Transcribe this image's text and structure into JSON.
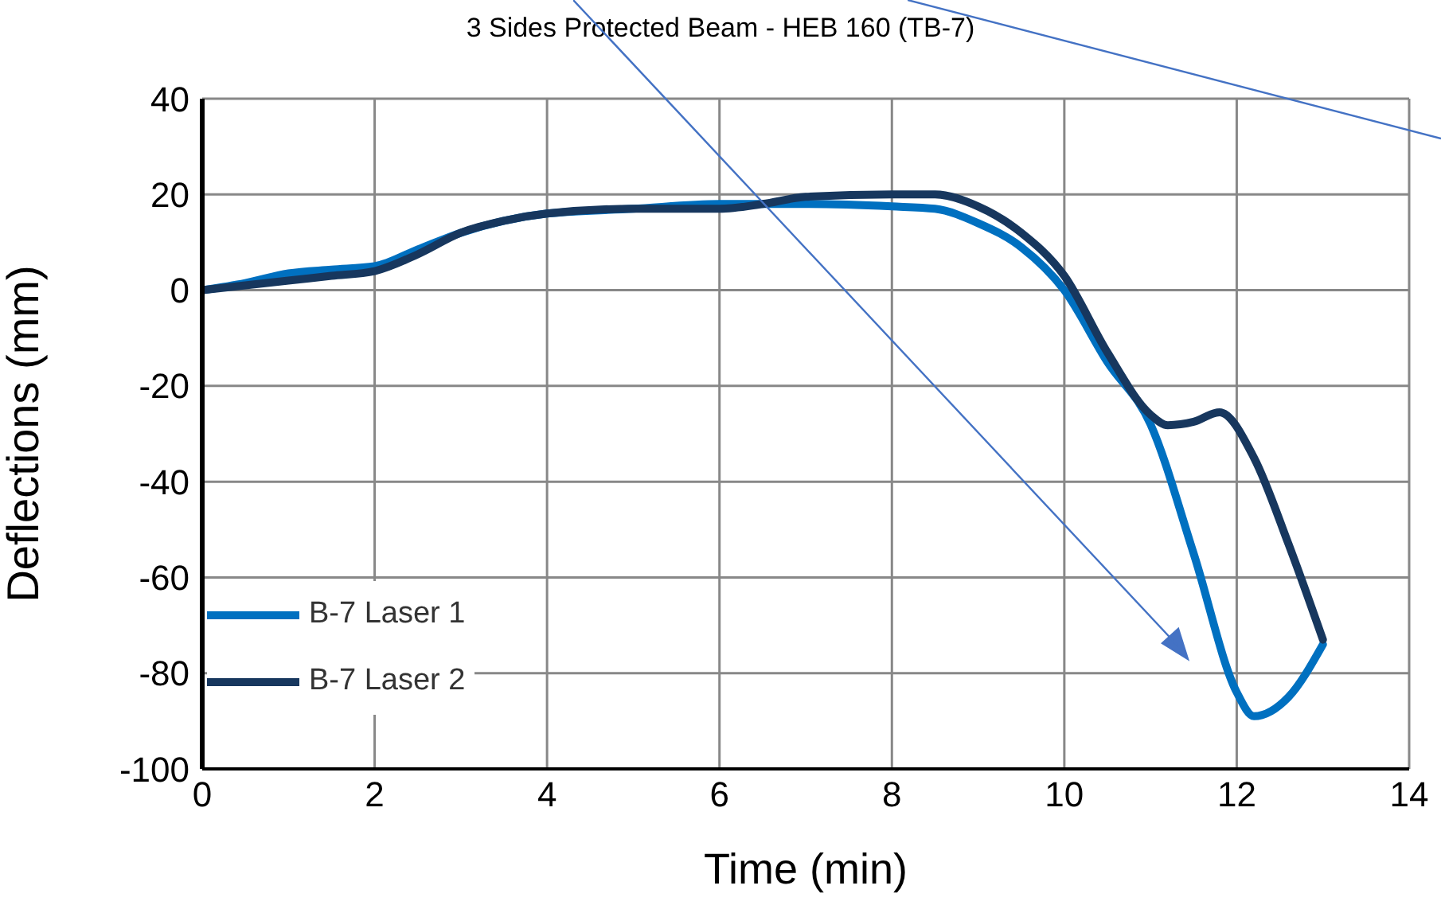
{
  "chart_data": {
    "type": "line",
    "title": "3 Sides Protected Beam - HEB 160 (TB-7)",
    "xlabel": "Time (min)",
    "ylabel": "Deflections (mm)",
    "xlim": [
      0,
      14
    ],
    "xticks": [
      0,
      2,
      4,
      6,
      8,
      10,
      12,
      14
    ],
    "ylim": [
      -100,
      40
    ],
    "yticks": [
      -100,
      -80,
      -60,
      -40,
      -20,
      0,
      20,
      40
    ],
    "grid": true,
    "legend": "bottom left",
    "marker": "none",
    "line_style": "solid",
    "series": [
      {
        "name": "B-7 Laser 1",
        "color": "#0070c0",
        "x": [
          0,
          0.5,
          1,
          1.5,
          2,
          2.5,
          3,
          3.5,
          4,
          5,
          6,
          7,
          8,
          8.5,
          9,
          9.5,
          10,
          10.5,
          11,
          11.5,
          12,
          12.2,
          12.6,
          13
        ],
        "values": [
          0,
          1.5,
          3.5,
          4.3,
          5,
          8.5,
          12,
          14.5,
          16,
          17,
          18,
          18,
          17.5,
          17,
          14,
          9,
          0,
          -15,
          -28,
          -55,
          -84,
          -89,
          -85,
          -74
        ]
      },
      {
        "name": "B-7 Laser 2",
        "color": "#17375e",
        "x": [
          0,
          0.5,
          1,
          1.5,
          2,
          2.5,
          3,
          3.5,
          4,
          5,
          6,
          6.5,
          7,
          8,
          8.5,
          9,
          9.5,
          10,
          10.5,
          11,
          11.2,
          11.5,
          11.8,
          12.2,
          12.6,
          13
        ],
        "values": [
          0,
          1,
          2,
          3,
          4,
          7.5,
          12,
          14.5,
          16,
          17,
          17,
          18,
          19.5,
          20,
          20,
          17.5,
          12,
          3,
          -13,
          -26,
          -28.2,
          -27.5,
          -25.5,
          -35,
          -53,
          -73
        ]
      }
    ]
  }
}
